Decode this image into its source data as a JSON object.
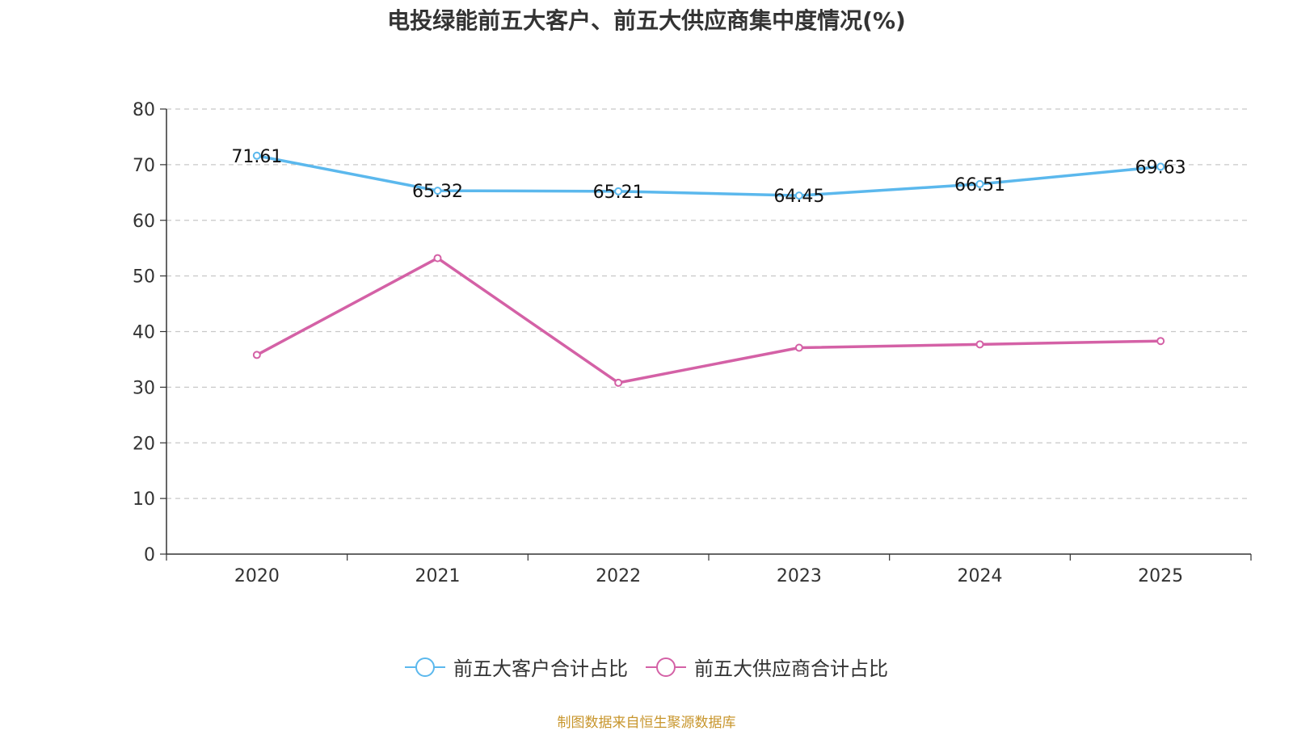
{
  "chart_data": {
    "type": "line",
    "title": "电投绿能前五大客户、前五大供应商集中度情况(%)",
    "categories": [
      "2020",
      "2021",
      "2022",
      "2023",
      "2024",
      "2025"
    ],
    "ylim": [
      0,
      80
    ],
    "yticks": [
      0,
      10,
      20,
      30,
      40,
      50,
      60,
      70,
      80
    ],
    "grid": true,
    "legend_position": "bottom",
    "series": [
      {
        "name": "前五大客户合计占比",
        "color": "#5bb8ed",
        "values": [
          71.61,
          65.32,
          65.21,
          64.45,
          66.51,
          69.63
        ],
        "labels": [
          "71.61",
          "65.32",
          "65.21",
          "64.45",
          "66.51",
          "69.63"
        ]
      },
      {
        "name": "前五大供应商合计占比",
        "color": "#d461a6",
        "values": [
          35.8,
          53.2,
          30.8,
          37.1,
          37.7,
          38.3
        ]
      }
    ]
  },
  "source_note": "制图数据来自恒生聚源数据库"
}
